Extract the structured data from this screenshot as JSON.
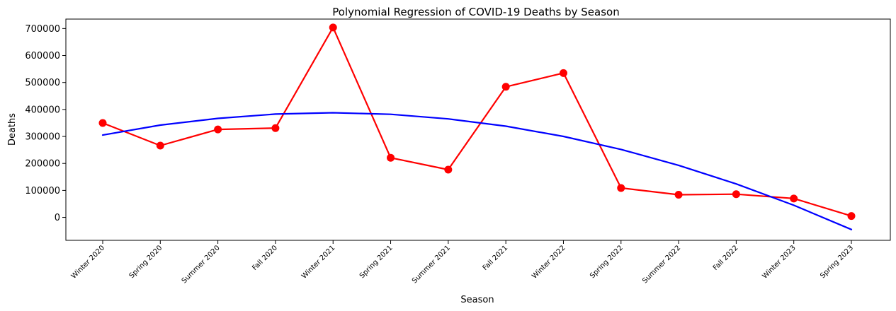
{
  "chart_data": {
    "type": "line",
    "title": "Polynomial Regression of COVID-19 Deaths by Season",
    "xlabel": "Season",
    "ylabel": "Deaths",
    "categories": [
      "Winter 2020",
      "Spring 2020",
      "Summer 2020",
      "Fall 2020",
      "Winter 2021",
      "Spring 2021",
      "Summer 2021",
      "Fall 2021",
      "Winter 2022",
      "Spring 2022",
      "Summer 2022",
      "Fall 2022",
      "Winter 2023",
      "Spring 2023"
    ],
    "yticks": [
      0,
      100000,
      200000,
      300000,
      400000,
      500000,
      600000,
      700000
    ],
    "ylim": [
      -85000,
      735000
    ],
    "grid": false,
    "series": [
      {
        "color": "#ff0000",
        "markers": true,
        "values": [
          350000,
          266000,
          326000,
          331000,
          704000,
          221000,
          177000,
          484000,
          535000,
          109000,
          84000,
          86000,
          70000,
          5000
        ]
      },
      {
        "color": "#0000ff",
        "markers": false,
        "values": [
          305000,
          342000,
          367000,
          383000,
          388000,
          382000,
          365000,
          338000,
          300000,
          252000,
          193000,
          124000,
          45000,
          -45000
        ]
      }
    ]
  }
}
